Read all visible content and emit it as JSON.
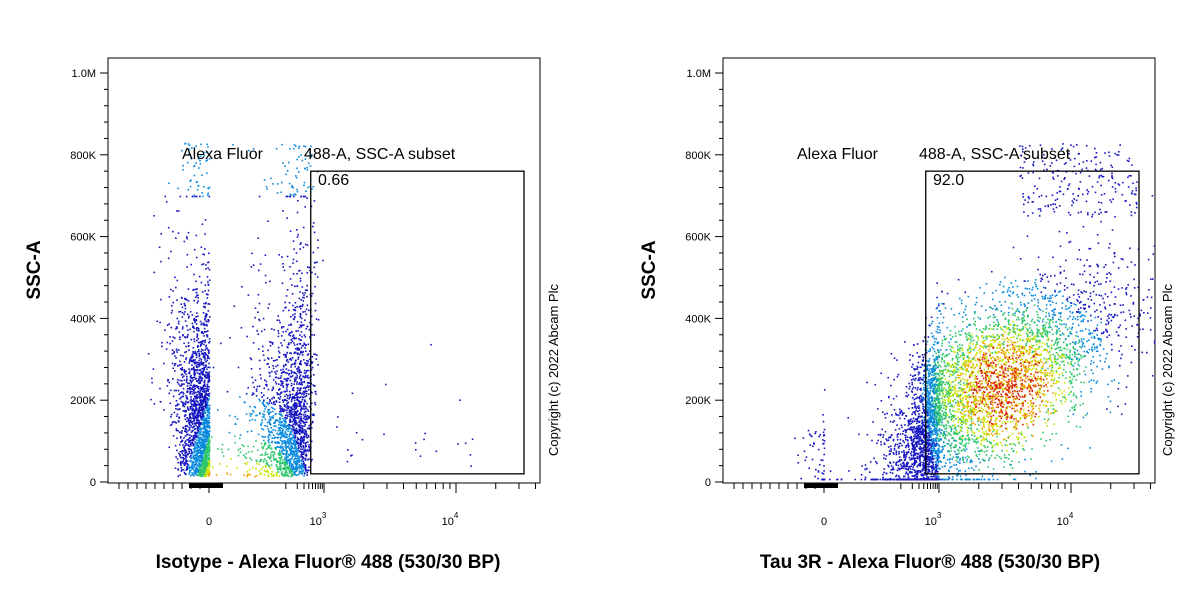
{
  "chart_data": [
    {
      "type": "scatter",
      "panel": "left",
      "xlabel": "Isotype - Alexa Fluor® 488 (530/30 BP)",
      "ylabel": "SSC-A",
      "x_scale": "biexponential",
      "y_ticks": [
        "0",
        "200K",
        "400K",
        "600K",
        "800K",
        "1.0M"
      ],
      "x_ticks": [
        {
          "base": "0",
          "exp": ""
        },
        {
          "base": "10",
          "exp": "3"
        },
        {
          "base": "10",
          "exp": "4"
        }
      ],
      "gate": {
        "name_part1": "Alexa Fluor",
        "name_part2": "488-A, SSC-A subset",
        "percent": "0.66",
        "x_range": [
          450,
          40000
        ],
        "y_range": [
          20000,
          760000
        ]
      },
      "population": {
        "x_center": 0,
        "x_spread": 180,
        "y_mode": 60000,
        "y_max": 700000,
        "events_in_gate": 24
      },
      "copyright": "Copyright (c) 2022 Abcam Plc"
    },
    {
      "type": "scatter",
      "panel": "right",
      "xlabel": "Tau 3R - Alexa Fluor® 488 (530/30 BP)",
      "ylabel": "SSC-A",
      "x_scale": "biexponential",
      "y_ticks": [
        "0",
        "200K",
        "400K",
        "600K",
        "800K",
        "1.0M"
      ],
      "x_ticks": [
        {
          "base": "0",
          "exp": ""
        },
        {
          "base": "10",
          "exp": "3"
        },
        {
          "base": "10",
          "exp": "4"
        }
      ],
      "gate": {
        "name_part1": "Alexa Fluor",
        "name_part2": "488-A, SSC-A subset",
        "percent": "92.0",
        "x_range": [
          450,
          40000
        ],
        "y_range": [
          20000,
          760000
        ]
      },
      "population": {
        "x_center": 3500,
        "y_mode": 180000,
        "y_max": 720000
      },
      "copyright": "Copyright (c) 2022 Abcam Plc"
    }
  ]
}
